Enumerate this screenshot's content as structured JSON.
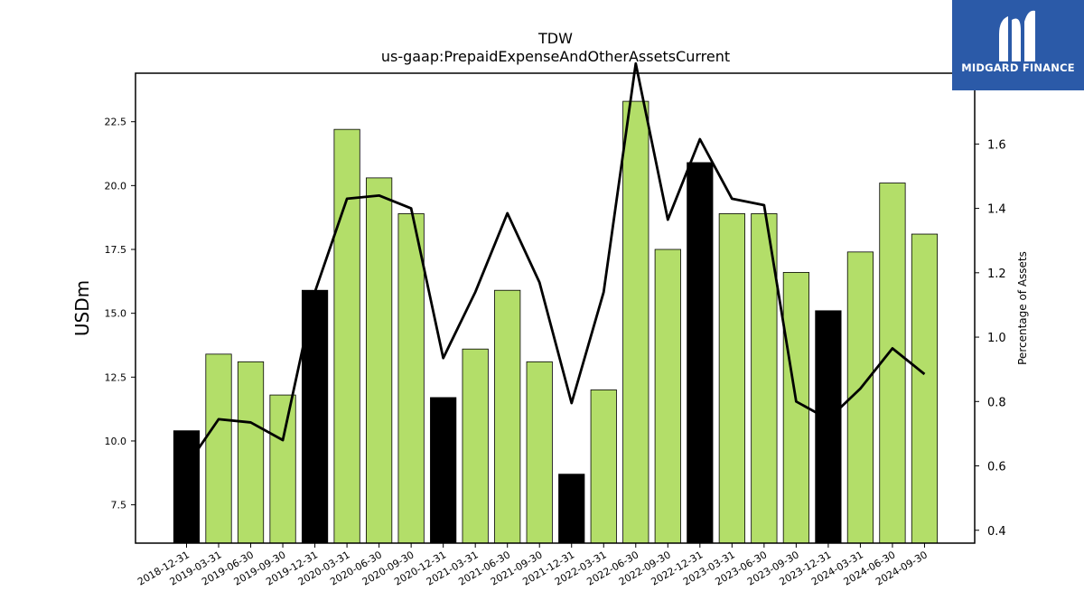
{
  "chart_data": {
    "type": "bar",
    "title": "TDW",
    "subtitle": "us-gaap:PrepaidExpenseAndOtherAssetsCurrent",
    "ylabel": "USDm",
    "y2label": "Percentage of Assets",
    "categories": [
      "2018-12-31",
      "2019-03-31",
      "2019-06-30",
      "2019-09-30",
      "2019-12-31",
      "2020-03-31",
      "2020-06-30",
      "2020-09-30",
      "2020-12-31",
      "2021-03-31",
      "2021-06-30",
      "2021-09-30",
      "2021-12-31",
      "2022-03-31",
      "2022-06-30",
      "2022-09-30",
      "2022-12-31",
      "2023-03-31",
      "2023-06-30",
      "2023-09-30",
      "2023-12-31",
      "2024-03-31",
      "2024-06-30",
      "2024-09-30"
    ],
    "series": [
      {
        "type": "bar",
        "axis": "left",
        "values": [
          10.4,
          13.4,
          13.1,
          11.8,
          15.9,
          22.2,
          20.3,
          18.9,
          11.7,
          13.6,
          15.9,
          13.1,
          8.7,
          12.0,
          23.3,
          17.5,
          20.9,
          18.9,
          18.9,
          16.6,
          15.1,
          17.4,
          20.1,
          18.1
        ],
        "colors": [
          "#000000",
          "#b3de69",
          "#b3de69",
          "#b3de69",
          "#000000",
          "#b3de69",
          "#b3de69",
          "#b3de69",
          "#000000",
          "#b3de69",
          "#b3de69",
          "#b3de69",
          "#000000",
          "#b3de69",
          "#b3de69",
          "#b3de69",
          "#000000",
          "#b3de69",
          "#b3de69",
          "#b3de69",
          "#000000",
          "#b3de69",
          "#b3de69",
          "#b3de69"
        ]
      },
      {
        "type": "line",
        "axis": "right",
        "color": "#000000",
        "values": [
          0.6,
          0.745,
          0.735,
          0.68,
          1.14,
          1.43,
          1.44,
          1.4,
          0.935,
          1.14,
          1.385,
          1.17,
          0.795,
          1.14,
          1.85,
          1.365,
          1.615,
          1.43,
          1.41,
          0.8,
          0.745,
          0.84,
          0.965,
          0.885
        ]
      }
    ],
    "ylim": [
      6.0,
      24.4
    ],
    "yticks": [
      7.5,
      10.0,
      12.5,
      15.0,
      17.5,
      20.0,
      22.5
    ],
    "y2lim": [
      0.36,
      1.82
    ],
    "y2ticks": [
      0.4,
      0.6,
      0.8,
      1.0,
      1.2,
      1.4,
      1.6
    ],
    "grid": false,
    "legend": "none"
  },
  "logo": {
    "text": "MIDGARD FINANCE",
    "background": "#2b5aa8"
  }
}
